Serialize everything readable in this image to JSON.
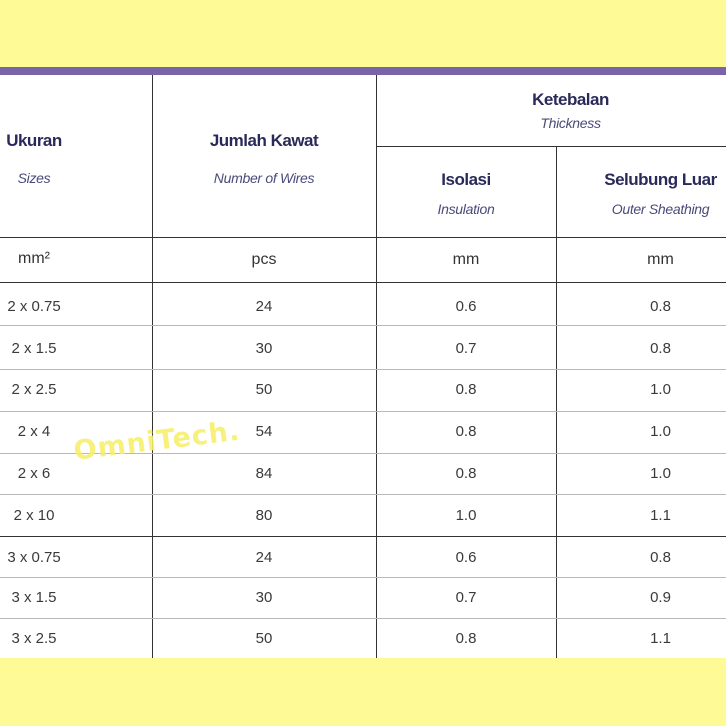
{
  "header": {
    "sizes": {
      "main": "Ukuran",
      "sub": "Sizes"
    },
    "wires": {
      "main": "Jumlah Kawat",
      "sub": "Number of Wires"
    },
    "thickness": {
      "main": "Ketebalan",
      "sub": "Thickness"
    },
    "insulation": {
      "main": "Isolasi",
      "sub": "Insulation"
    },
    "sheathing": {
      "main": "Selubung Luar",
      "sub": "Outer Sheathing"
    }
  },
  "units": [
    "mm²",
    "pcs",
    "mm",
    "mm"
  ],
  "rows": [
    [
      "2 x 0.75",
      "24",
      "0.6",
      "0.8"
    ],
    [
      "2 x 1.5",
      "30",
      "0.7",
      "0.8"
    ],
    [
      "2 x 2.5",
      "50",
      "0.8",
      "1.0"
    ],
    [
      "2 x 4",
      "54",
      "0.8",
      "1.0"
    ],
    [
      "2 x 6",
      "84",
      "0.8",
      "1.0"
    ],
    [
      "2 x 10",
      "80",
      "1.0",
      "1.1"
    ],
    [
      "3 x 0.75",
      "24",
      "0.6",
      "0.8"
    ],
    [
      "3 x 1.5",
      "30",
      "0.7",
      "0.9"
    ],
    [
      "3 x 2.5",
      "50",
      "0.8",
      "1.1"
    ]
  ],
  "watermark": "OmniTech.",
  "colors": {
    "background": "#fefa95",
    "accent_bar": "#7a63a8",
    "heading_text": "#2a2a5a"
  }
}
